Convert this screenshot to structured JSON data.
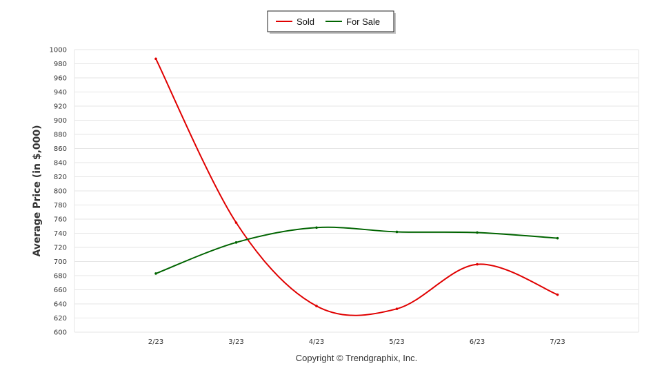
{
  "chart_data": {
    "type": "line",
    "categories": [
      "2/23",
      "3/23",
      "4/23",
      "5/23",
      "6/23",
      "7/23"
    ],
    "series": [
      {
        "name": "Sold",
        "color": "#e00000",
        "values": [
          987,
          755,
          637,
          633,
          696,
          653
        ]
      },
      {
        "name": "For Sale",
        "color": "#006400",
        "values": [
          683,
          727,
          748,
          742,
          741,
          733
        ]
      }
    ],
    "ylabel": "Average Price (in $,000)",
    "ylim": [
      600,
      1000
    ],
    "ytick_step": 20,
    "grid": true,
    "legend_position": "top-center",
    "footer": "Copyright © Trendgraphix, Inc."
  }
}
